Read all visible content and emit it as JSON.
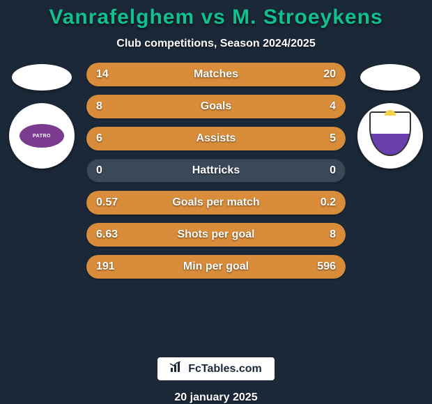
{
  "background_color": "#1b2838",
  "title": {
    "text": "Vanrafelghem vs M. Stroeykens",
    "fontsize": 30,
    "color": "#12c08e"
  },
  "subtitle": {
    "text": "Club competitions, Season 2024/2025",
    "fontsize": 16,
    "color": "#ffffff"
  },
  "value_fontsize": 16,
  "value_color": "#ffffff",
  "label_fontsize": 16,
  "label_color": "#ffffff",
  "bar": {
    "empty_color": "#3b4858",
    "left_fill_color": "#d98d3a",
    "right_fill_color": "#d98d3a",
    "height": 34,
    "radius": 17
  },
  "stats": [
    {
      "label": "Matches",
      "left_val": "14",
      "right_val": "20",
      "left_pct": 41,
      "right_pct": 59
    },
    {
      "label": "Goals",
      "left_val": "8",
      "right_val": "4",
      "left_pct": 67,
      "right_pct": 33
    },
    {
      "label": "Assists",
      "left_val": "6",
      "right_val": "5",
      "left_pct": 55,
      "right_pct": 45
    },
    {
      "label": "Hattricks",
      "left_val": "0",
      "right_val": "0",
      "left_pct": 0,
      "right_pct": 0
    },
    {
      "label": "Goals per match",
      "left_val": "0.57",
      "right_val": "0.2",
      "left_pct": 74,
      "right_pct": 26
    },
    {
      "label": "Shots per goal",
      "left_val": "6.63",
      "right_val": "8",
      "left_pct": 45,
      "right_pct": 55
    },
    {
      "label": "Min per goal",
      "left_val": "191",
      "right_val": "596",
      "left_pct": 24,
      "right_pct": 76
    }
  ],
  "left_player": {
    "badge_text": "PATRO"
  },
  "footer": {
    "box_bg": "#ffffff",
    "text": "FcTables.com",
    "text_color": "#1b2838",
    "fontsize": 16,
    "icon": "bar-chart-icon"
  },
  "date": {
    "text": "20 january 2025",
    "color": "#ffffff",
    "fontsize": 16
  }
}
